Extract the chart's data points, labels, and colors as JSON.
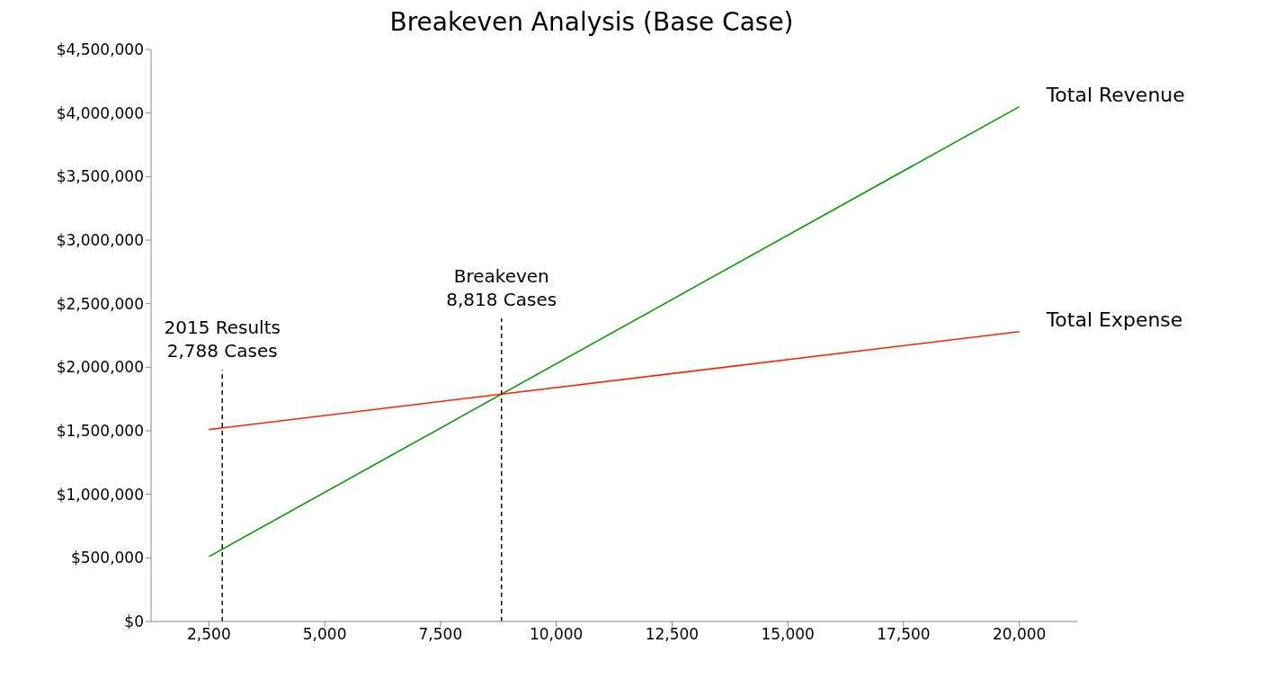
{
  "chart_data": {
    "type": "line",
    "title": "Breakeven Analysis (Base Case)",
    "series": [
      {
        "name": "Total Revenue",
        "color": "#009900",
        "values": [
          510000,
          4050000
        ]
      },
      {
        "name": "Total Expense",
        "color": "#ff2200",
        "values": [
          1510000,
          2280000
        ]
      }
    ],
    "x": [
      2500,
      20000
    ],
    "xlim": [
      1250,
      21250
    ],
    "xticks": [
      {
        "value": 2500,
        "label": "2,500"
      },
      {
        "value": 5000,
        "label": "5,000"
      },
      {
        "value": 7500,
        "label": "7,500"
      },
      {
        "value": 10000,
        "label": "10,000"
      },
      {
        "value": 12500,
        "label": "12,500"
      },
      {
        "value": 15000,
        "label": "15,000"
      },
      {
        "value": 17500,
        "label": "17,500"
      },
      {
        "value": 20000,
        "label": "20,000"
      }
    ],
    "ylim": [
      0,
      4500000
    ],
    "yticks": [
      {
        "value": 0,
        "label": "$0"
      },
      {
        "value": 500000,
        "label": "$500,000"
      },
      {
        "value": 1000000,
        "label": "$1,000,000"
      },
      {
        "value": 1500000,
        "label": "$1,500,000"
      },
      {
        "value": 2000000,
        "label": "$2,000,000"
      },
      {
        "value": 2500000,
        "label": "$2,500,000"
      },
      {
        "value": 3000000,
        "label": "$3,000,000"
      },
      {
        "value": 3500000,
        "label": "$3,500,000"
      },
      {
        "value": 4000000,
        "label": "$4,000,000"
      },
      {
        "value": 4500000,
        "label": "$4,500,000"
      }
    ],
    "ref_lines": [
      {
        "axis": "x",
        "value": 2788,
        "label": "2015 Results\n2,788 Cases",
        "color": "#000000",
        "line_style": "dashed"
      },
      {
        "axis": "x",
        "value": 8818,
        "label": "Breakeven\n8,818 Cases",
        "color": "#000000",
        "line_style": "dashed"
      }
    ],
    "grid": false,
    "legend": false,
    "marker": "none",
    "line_style": "solid"
  }
}
